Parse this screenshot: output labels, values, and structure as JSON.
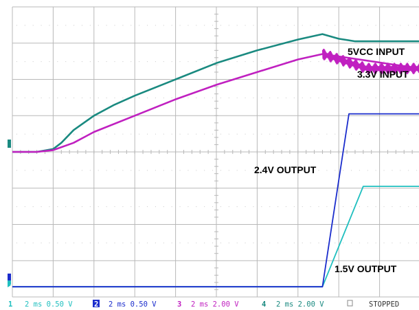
{
  "labels": {
    "five_vcc": "5VCC INPUT",
    "three_v3": "3.3V INPUT",
    "two_v4": "2.4V OUTPUT",
    "one_v5": "1.5V OUTPUT"
  },
  "status_bar": {
    "ch1_num": "1",
    "ch1_text": "2 ms 0.50 V",
    "ch2_num": "2",
    "ch2_text": "2 ms 0.50 V",
    "ch3_num": "3",
    "ch3_text": "2 ms 2.00 V",
    "ch4_num": "4",
    "ch4_text": "2 ms 2.00 V",
    "state": "STOPPED"
  },
  "colors": {
    "ch1": "#1fbfbf",
    "ch2": "#1a2ccc",
    "ch3": "#c020c0",
    "ch4": "#1a8a80",
    "grid": "#b8b8b8"
  },
  "chart_data": {
    "type": "line",
    "title": "",
    "xlabel": "",
    "ylabel": "",
    "x_divisions": 10,
    "y_divisions": 8,
    "xlim": [
      0,
      10
    ],
    "ylim": [
      -4,
      4
    ],
    "series": [
      {
        "name": "5VCC INPUT",
        "channel": 4,
        "x": [
          0,
          0.6,
          1.0,
          1.2,
          1.5,
          2.0,
          2.5,
          3.0,
          4.0,
          5.0,
          6.0,
          7.0,
          7.6,
          8.0,
          8.4,
          10
        ],
        "y": [
          0,
          0,
          0.08,
          0.25,
          0.6,
          1.0,
          1.3,
          1.55,
          2.0,
          2.45,
          2.8,
          3.1,
          3.25,
          3.12,
          3.05,
          3.05
        ]
      },
      {
        "name": "3.3V INPUT",
        "channel": 3,
        "x": [
          0,
          0.6,
          1.0,
          1.5,
          2.0,
          3.0,
          4.0,
          5.0,
          6.0,
          7.0,
          7.6,
          10
        ],
        "y": [
          0,
          0,
          0.05,
          0.25,
          0.55,
          1.0,
          1.45,
          1.85,
          2.2,
          2.55,
          2.7,
          2.3
        ]
      },
      {
        "name": "2.4V OUTPUT",
        "channel": 2,
        "x": [
          0,
          7.6,
          8.25,
          8.6,
          10
        ],
        "y": [
          -3.72,
          -3.72,
          1.05,
          1.05,
          1.05
        ]
      },
      {
        "name": "1.5V OUTPUT",
        "channel": 1,
        "x": [
          0,
          7.6,
          8.6,
          8.9,
          10
        ],
        "y": [
          -3.72,
          -3.72,
          -0.95,
          -0.95,
          -0.95
        ]
      }
    ]
  }
}
